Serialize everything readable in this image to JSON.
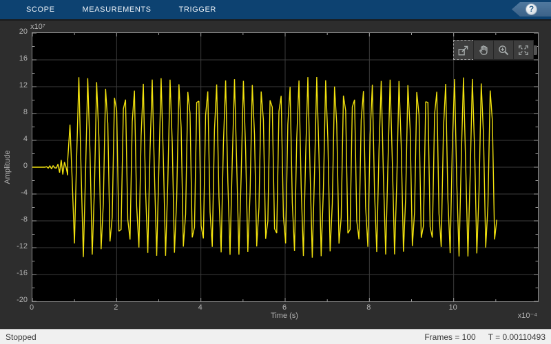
{
  "toolbar": {
    "tabs": [
      {
        "label": "SCOPE"
      },
      {
        "label": "MEASUREMENTS"
      },
      {
        "label": "TRIGGER"
      }
    ],
    "help_label": "?"
  },
  "plot_toolbar": {
    "icons": [
      "maximize-axes",
      "pan",
      "zoom-in",
      "fit-to-view"
    ]
  },
  "chart_data": {
    "type": "line",
    "title": "",
    "xlabel": "Time (s)",
    "ylabel": "Amplitude",
    "x_scale_label": "x10⁻⁴",
    "y_scale_label": "x10⁷",
    "x_unit_seconds": 0.0001,
    "y_unit": 10000000,
    "x_range": [
      0,
      12
    ],
    "y_range": [
      -20,
      20
    ],
    "x_ticks": [
      0,
      2,
      4,
      6,
      8,
      10
    ],
    "x_minor_ticks": [
      1,
      3,
      5,
      7,
      9,
      11
    ],
    "y_ticks": [
      20,
      16,
      12,
      8,
      4,
      0,
      -4,
      -8,
      -12,
      -16,
      -20
    ],
    "y_minor_ticks": [
      18,
      14,
      10,
      6,
      2,
      -2,
      -6,
      -10,
      -14,
      -18
    ],
    "grid": true,
    "legend": "none",
    "background": "#000000",
    "grid_color": "#3c3c3c",
    "tick_color": "#9f9f9f",
    "line_color": "#f2e20e",
    "signal": {
      "description": "Sampled FM burst: flat at 0, brief growing ripple 0.3-0.84, then constant-envelope oscillation peaking near +13.5/-13.5 (x10^7), ending at t=11.03 (x10^-4 s)",
      "flat_until": 0.3,
      "ramp_until": 0.84,
      "burst_until": 11.03,
      "amplitude": 13.5,
      "ramp_start_amplitude": 0.12,
      "ramp_end_amplitude": 2.6,
      "ramp_cycles_per_unit": 11,
      "ramp_samples_per_unit": 26,
      "carrier_cycles_per_unit": 4.6,
      "samples_per_unit": 18.95
    }
  },
  "status_bar": {
    "state": "Stopped",
    "frames": "Frames = 100",
    "time": "T = 0.00110493"
  }
}
